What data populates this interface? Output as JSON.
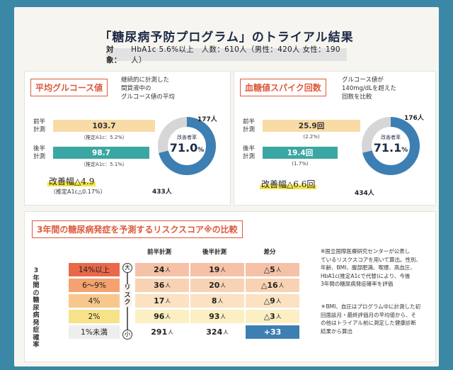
{
  "title": "「糖尿病予防プログラム」のトライアル結果",
  "subject": {
    "label": "対象：",
    "text": "HbA1c 5.6%以上　人数：610人（男性：420人 女性：190人）"
  },
  "glucose": {
    "heading": "平均グルコース値",
    "desc": [
      "継続的に計測した",
      "間質液中の",
      "グルコース値の平均"
    ],
    "first_label": "前半計測",
    "second_label": "後半計測",
    "first_value": "103.7",
    "first_note": "（推定A1c：5.2%）",
    "second_value": "98.7",
    "second_note": "（推定A1c：5.1%）",
    "improve_label": "改善幅",
    "improve_value": "△4.9",
    "improve_sub": "（推定A1c△0.17%）",
    "donut": {
      "caption": "改善者率",
      "value": "71.0",
      "unit": "%",
      "improved": "433人",
      "other": "177人",
      "fraction": 0.71,
      "color": "#3d7fb3",
      "rest_color": "#d6d6d6"
    }
  },
  "spike": {
    "heading": "血糖値スパイク回数",
    "desc": [
      "グルコース値が",
      "140mg/dLを超えた",
      "回数を比較"
    ],
    "first_label": "前半計測",
    "second_label": "後半計測",
    "first_value": "25.9回",
    "first_note": "(2.2%)",
    "second_value": "19.4回",
    "second_note": "(1.7%)",
    "improve_label": "改善幅",
    "improve_value": "△6.6回",
    "donut": {
      "caption": "改善者率",
      "value": "71.1",
      "unit": "%",
      "improved": "434人",
      "other": "176人",
      "fraction": 0.711,
      "color": "#3d7fb3",
      "rest_color": "#d6d6d6"
    }
  },
  "risk": {
    "heading": "3年間の糖尿病発症を予測するリスクスコア※の比較",
    "side_label": "3年間の糖尿病発症確率",
    "scale_label": "リスク",
    "scale_high": "大",
    "scale_low": "小",
    "columns": [
      "前半計測",
      "後半計測",
      "差分"
    ],
    "rows": [
      {
        "group": "14%以上",
        "first": "24",
        "second": "19",
        "diff": "△5",
        "color": "#e9684a",
        "tint": "#f5c2a8"
      },
      {
        "group": "6〜9%",
        "first": "36",
        "second": "20",
        "diff": "△16",
        "color": "#f4a26f",
        "tint": "#f8d3b3"
      },
      {
        "group": "4%",
        "first": "17",
        "second": "8",
        "diff": "△9",
        "color": "#f8c78d",
        "tint": "#fbe2c2"
      },
      {
        "group": "2%",
        "first": "96",
        "second": "93",
        "diff": "△3",
        "color": "#f7e28a",
        "tint": "#fbefc3"
      },
      {
        "group": "1%未満",
        "first": "291",
        "second": "324",
        "diff": "+33",
        "color": "#eeeeee",
        "tint": "#ffffff"
      }
    ],
    "unit": "人",
    "footnotes": [
      [
        "※国立国際医療研究センターが公表し",
        "ているリスクスコアを用いて算出。性別、",
        "年齢、BMI、腹部肥満、喫煙、高血圧、",
        "HbA1c(推定A1cで代替)により、今後",
        "3年間の糖尿病発症確率を評価"
      ],
      [
        "＊BMI、血圧はプログラム中に計測した初",
        "回面談月・最終評価月の平均値から、そ",
        "の他はトライアル前に測定した健康診断",
        "結果から算出"
      ]
    ]
  }
}
